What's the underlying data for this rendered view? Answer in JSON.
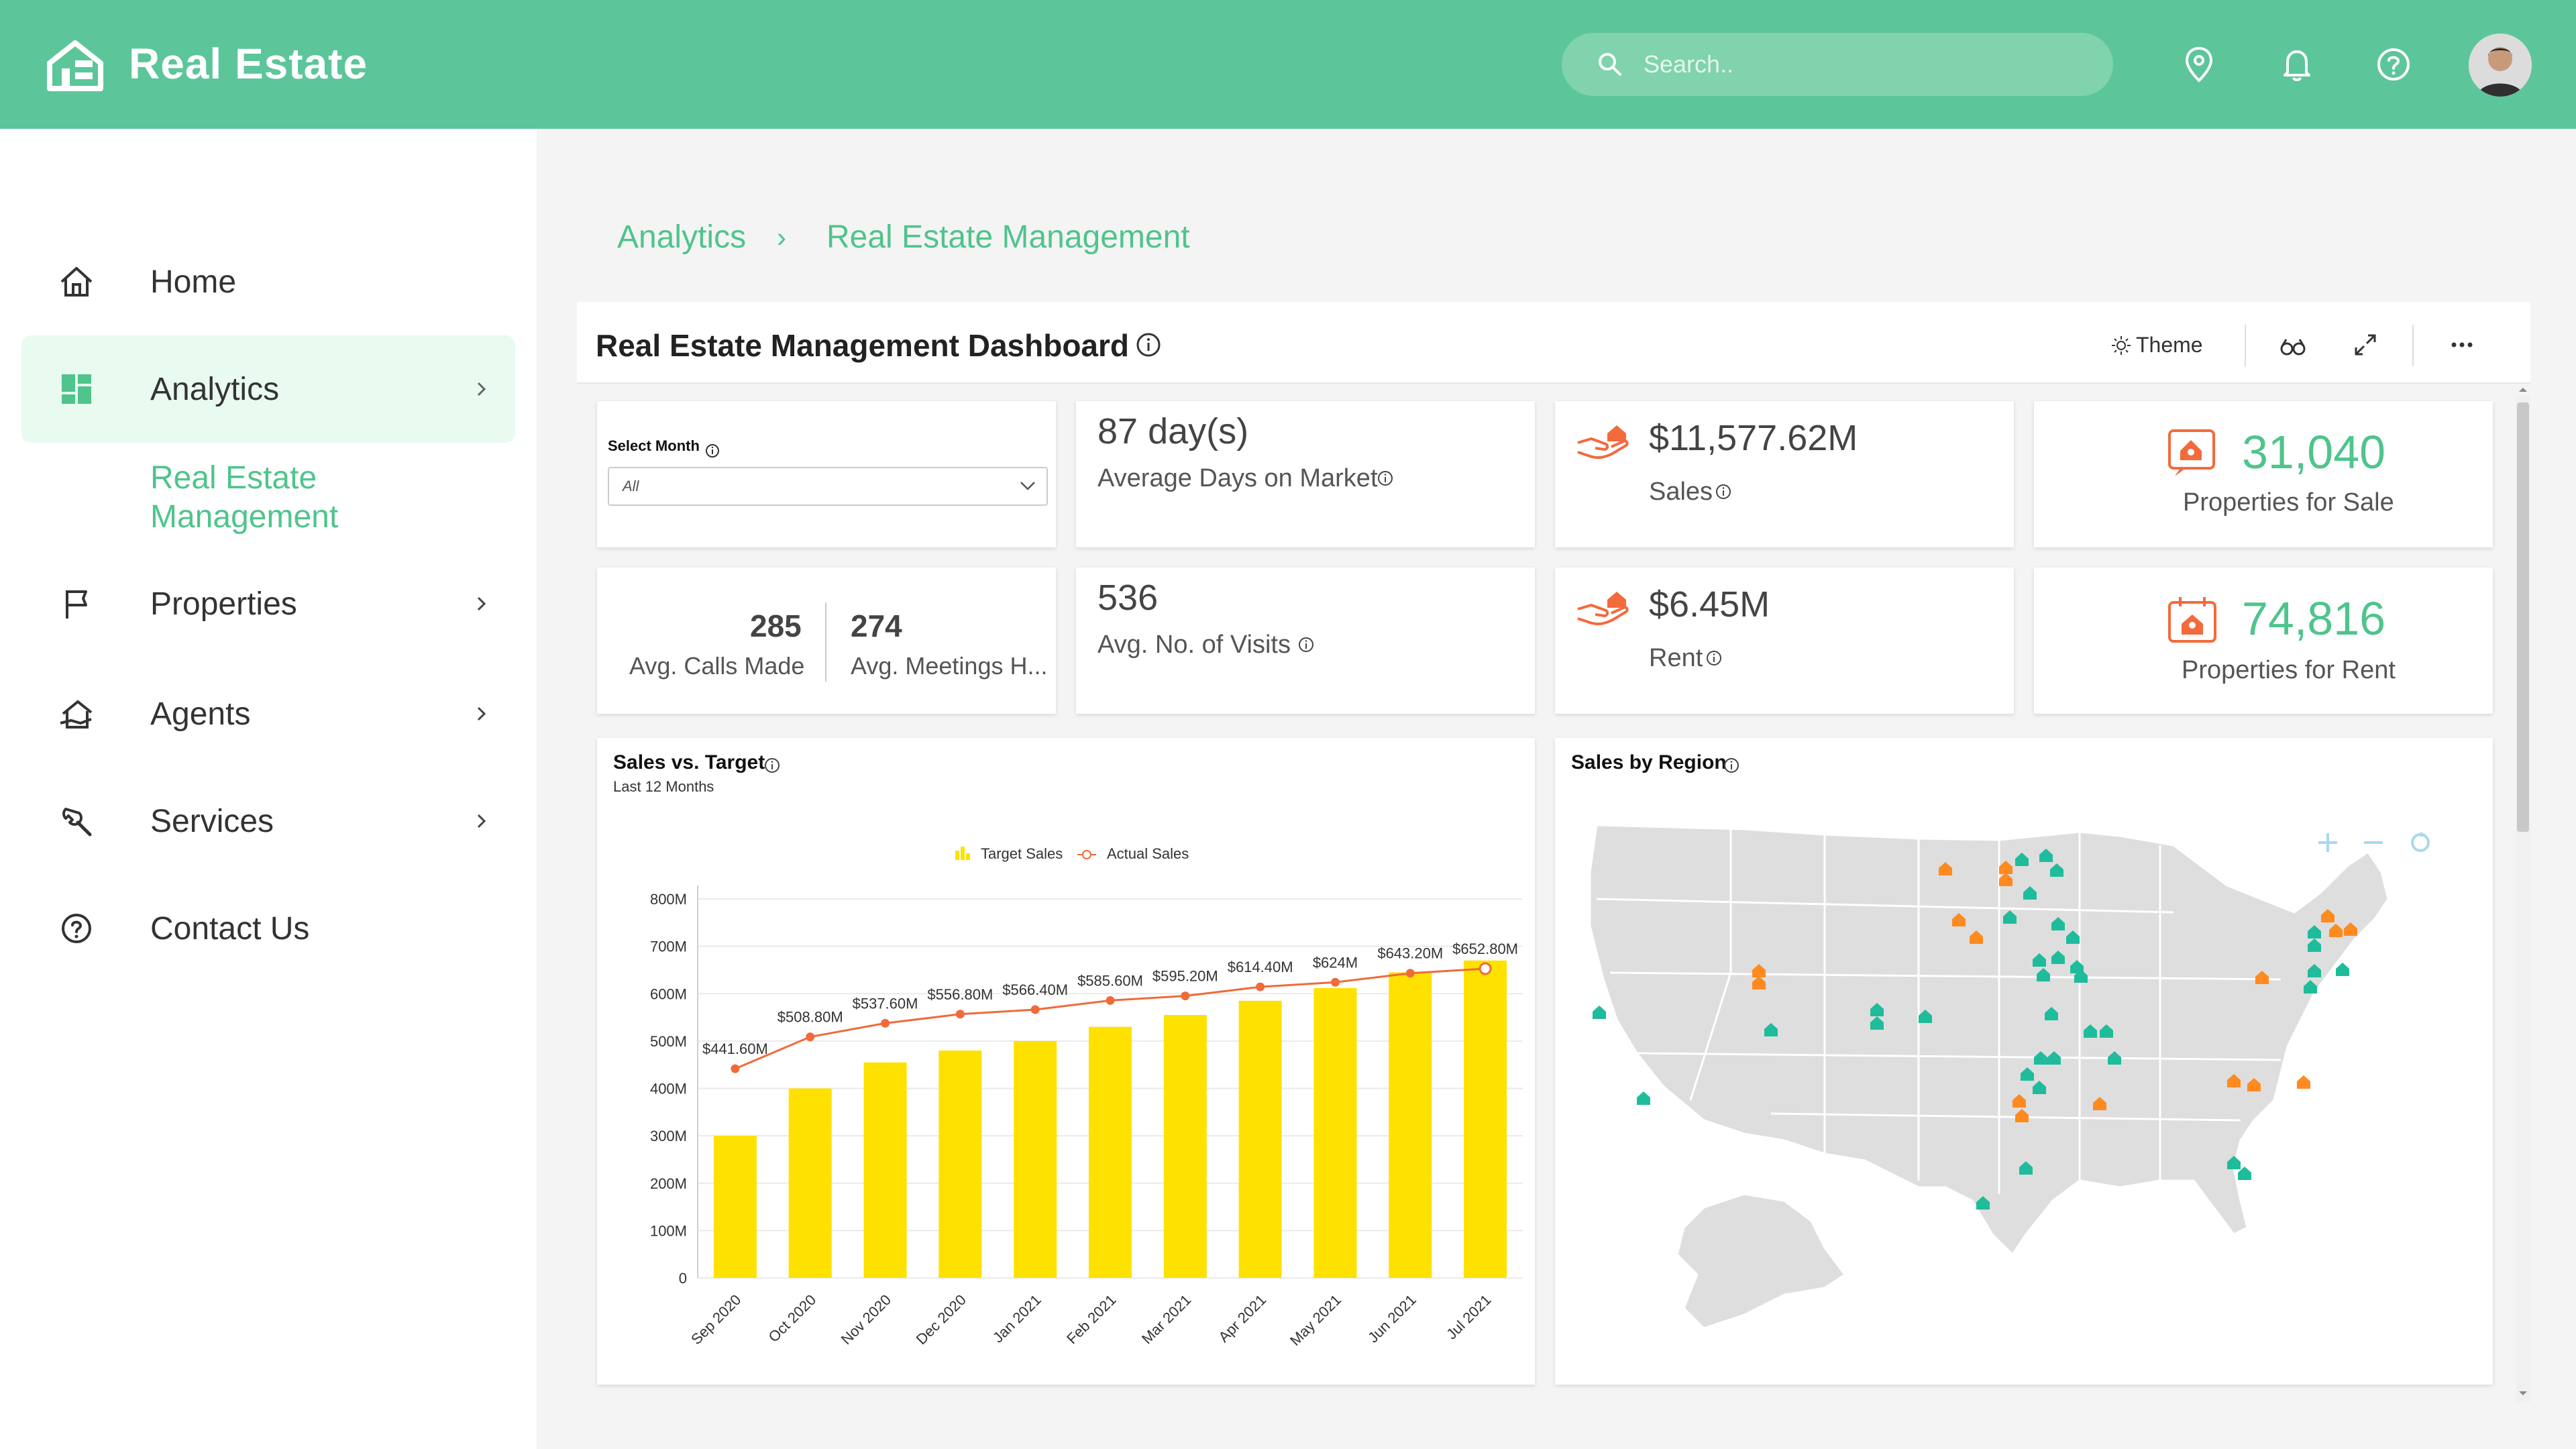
{
  "app": {
    "title": "Real Estate",
    "search_placeholder": "Search.."
  },
  "colors": {
    "header": "#5cc69a",
    "accent": "#4fc48c",
    "bar": "#ffe100",
    "line": "#f06a3a",
    "icon_orange": "#f36a3c",
    "marker_teal": "#1fbc9c",
    "marker_orange": "#ff8a1f"
  },
  "sidebar": {
    "items": [
      {
        "label": "Home",
        "icon": "home-icon"
      },
      {
        "label": "Analytics",
        "icon": "grid-icon"
      },
      {
        "label": "Properties",
        "icon": "flag-icon"
      },
      {
        "label": "Agents",
        "icon": "agent-icon"
      },
      {
        "label": "Services",
        "icon": "wrench-icon"
      },
      {
        "label": "Contact Us",
        "icon": "help-icon"
      }
    ],
    "sub_item": {
      "line1": "Real Estate",
      "line2": "Management"
    }
  },
  "breadcrumb": {
    "level1": "Analytics",
    "sep": "›",
    "level2": "Real Estate Management"
  },
  "dashboard": {
    "title": "Real Estate Management Dashboard",
    "theme_label": "Theme"
  },
  "filters": {
    "month_label": "Select Month",
    "month_value": "All"
  },
  "kpis": {
    "days_on_market": {
      "value": "87 day(s)",
      "label": "Average Days on Market"
    },
    "sales": {
      "value": "$11,577.62M",
      "label": "Sales"
    },
    "for_sale": {
      "value": "31,040",
      "label": "Properties for Sale"
    },
    "calls": {
      "value": "285",
      "label": "Avg. Calls Made"
    },
    "meetings": {
      "value": "274",
      "label": "Avg. Meetings H..."
    },
    "visits": {
      "value": "536",
      "label": "Avg. No. of Visits"
    },
    "rent": {
      "value": "$6.45M",
      "label": "Rent"
    },
    "for_rent": {
      "value": "74,816",
      "label": "Properties for Rent"
    }
  },
  "sales_by_region": {
    "title": "Sales by Region"
  },
  "chart_data": {
    "type": "bar",
    "title": "Sales vs. Target",
    "subtitle": "Last 12 Months",
    "categories": [
      "Sep 2020",
      "Oct 2020",
      "Nov 2020",
      "Dec 2020",
      "Jan 2021",
      "Feb 2021",
      "Mar 2021",
      "Apr 2021",
      "May 2021",
      "Jun 2021",
      "Jul 2021"
    ],
    "ylim": [
      0,
      800
    ],
    "yticks": [
      "0",
      "100M",
      "200M",
      "300M",
      "400M",
      "500M",
      "600M",
      "700M",
      "800M"
    ],
    "legend_position": "top-center",
    "series": [
      {
        "name": "Target Sales",
        "type": "bar",
        "values": [
          300,
          400,
          455,
          480,
          500,
          530,
          555,
          585,
          612,
          645,
          670
        ]
      },
      {
        "name": "Actual Sales",
        "type": "line",
        "values": [
          441.6,
          508.8,
          537.6,
          556.8,
          566.4,
          585.6,
          595.2,
          614.4,
          624,
          643.2,
          652.8
        ],
        "labels": [
          "$441.60M",
          "$508.80M",
          "$537.60M",
          "$556.80M",
          "$566.40M",
          "$585.60M",
          "$595.20M",
          "$614.40M",
          "$624M",
          "$643.20M",
          "$652.80M"
        ]
      }
    ]
  }
}
